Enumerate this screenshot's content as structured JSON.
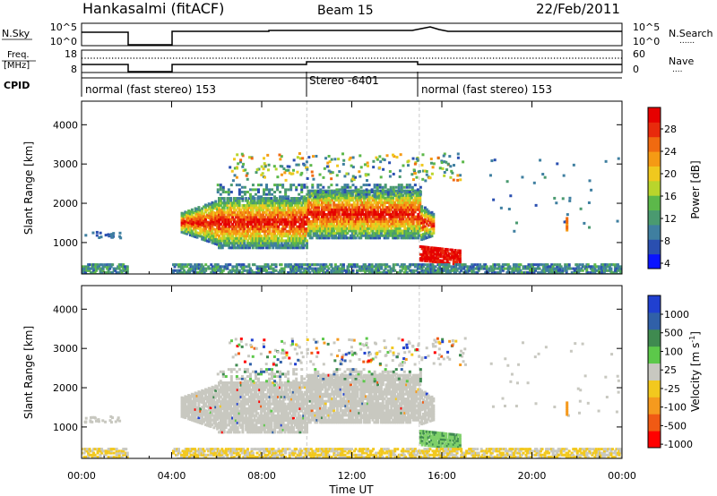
{
  "header": {
    "station": "Hankasalmi (fitACF)",
    "beam": "Beam 15",
    "date": "22/Feb/2011"
  },
  "status_panels": {
    "nsky_label": "N.Sky",
    "nsky_ticks": [
      "10^5",
      "10^0"
    ],
    "nsearch_label": "N.Search",
    "nsearch_ticks": [
      "10^5",
      "10^0"
    ],
    "freq_label": "Freq.",
    "freq_unit": "[MHz]",
    "freq_ticks": [
      "18",
      "8"
    ],
    "nave_label": "Nave",
    "nave_ticks": [
      "60",
      "0"
    ],
    "cpid_label": "CPID",
    "cpid_segments": [
      {
        "label": "normal (fast stereo) 153",
        "start_hour": 0,
        "end_hour": 10
      },
      {
        "label": "Stereo -6401",
        "start_hour": 10,
        "end_hour": 15
      },
      {
        "label": "normal (fast stereo) 153",
        "start_hour": 15,
        "end_hour": 24
      }
    ],
    "data_gaps_hours": [
      [
        2.0,
        4.0
      ]
    ]
  },
  "colorbars": {
    "power": {
      "label": "Power [dB]",
      "ticks": [
        "28",
        "24",
        "20",
        "16",
        "12",
        "8",
        "4"
      ],
      "colors": [
        "#0a14ff",
        "#2a4fb0",
        "#3f7fa0",
        "#4a9a70",
        "#5cb84a",
        "#b9d52c",
        "#f0c81e",
        "#f59a14",
        "#f06a10",
        "#e82a0c",
        "#e60000"
      ]
    },
    "velocity": {
      "label": "Velocity [m s",
      "label_superscript": "-1",
      "label_end": "]",
      "ticks": [
        "1000",
        "500",
        "100",
        "25",
        "-25",
        "-100",
        "-500",
        "-1000"
      ],
      "colors": [
        "#ff0000",
        "#f05a14",
        "#f59a1e",
        "#f2c81e",
        "#c8c8c0",
        "#5cc84a",
        "#3f8a50",
        "#3060a8",
        "#2040d0"
      ]
    }
  },
  "chart_data": [
    {
      "type": "heatmap",
      "name": "power",
      "title": "",
      "xlabel": "Time UT",
      "ylabel": "Slant Range [km]",
      "xlim": [
        0,
        24
      ],
      "ylim": [
        200,
        4600
      ],
      "x_ticks": [
        "00:00",
        "04:00",
        "08:00",
        "12:00",
        "16:00",
        "20:00",
        "00:00"
      ],
      "y_ticks": [
        1000,
        2000,
        3000,
        4000
      ],
      "regions": [
        {
          "desc": "main band",
          "x": [
            4.5,
            15.5
          ],
          "y": [
            900,
            2300
          ],
          "value": "high"
        },
        {
          "desc": "upper band",
          "x": [
            6.0,
            15.0
          ],
          "y": [
            2100,
            2600
          ],
          "value": "low"
        },
        {
          "desc": "near range",
          "x": [
            15.0,
            16.8
          ],
          "y": [
            500,
            1000
          ],
          "value": "high"
        },
        {
          "desc": "scattered high range",
          "x": [
            6.5,
            17.0
          ],
          "y": [
            2600,
            3300
          ],
          "value": "low"
        },
        {
          "desc": "ground clutter",
          "x": [
            0,
            24
          ],
          "y": [
            200,
            500
          ],
          "value": "low"
        }
      ]
    },
    {
      "type": "heatmap",
      "name": "velocity",
      "title": "",
      "xlabel": "Time UT",
      "ylabel": "Slant Range [km]",
      "xlim": [
        0,
        24
      ],
      "ylim": [
        200,
        4600
      ],
      "x_ticks": [
        "00:00",
        "04:00",
        "08:00",
        "12:00",
        "16:00",
        "20:00",
        "00:00"
      ],
      "y_ticks": [
        1000,
        2000,
        3000,
        4000
      ],
      "regions": [
        {
          "desc": "main band",
          "x": [
            4.5,
            15.5
          ],
          "y": [
            900,
            2300
          ],
          "value": "-25 to 25"
        },
        {
          "desc": "near range",
          "x": [
            15.0,
            16.8
          ],
          "y": [
            500,
            1000
          ],
          "value": "100"
        },
        {
          "desc": "scattered high range",
          "x": [
            6.5,
            17.0
          ],
          "y": [
            2600,
            3300
          ],
          "value": "mixed"
        }
      ]
    }
  ]
}
